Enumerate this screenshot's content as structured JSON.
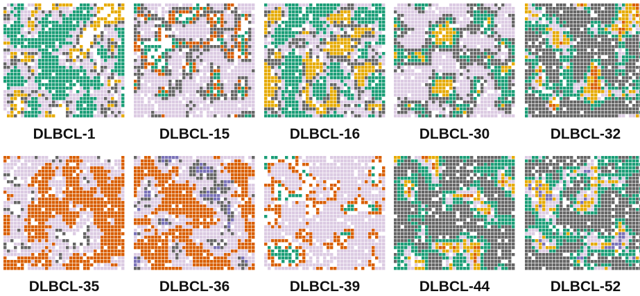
{
  "panels": [
    {
      "label": "DLBCL-1"
    },
    {
      "label": "DLBCL-15"
    },
    {
      "label": "DLBCL-16"
    },
    {
      "label": "DLBCL-30"
    },
    {
      "label": "DLBCL-32"
    },
    {
      "label": "DLBCL-35"
    },
    {
      "label": "DLBCL-36"
    },
    {
      "label": "DLBCL-39"
    },
    {
      "label": "DLBCL-44"
    },
    {
      "label": "DLBCL-52"
    }
  ]
}
